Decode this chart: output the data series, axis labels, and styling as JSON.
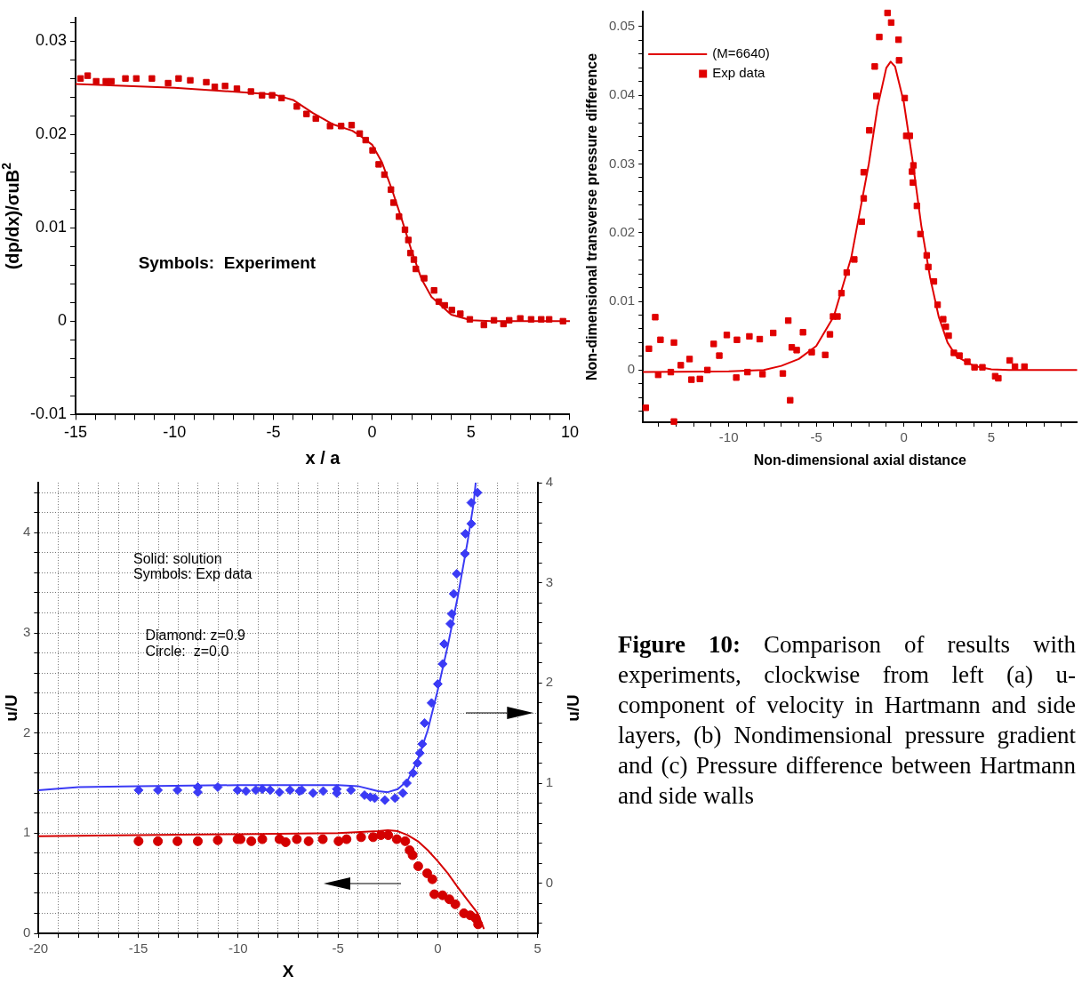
{
  "chart_data": [
    {
      "type": "line",
      "xlabel": "x / a",
      "ylabel": "(dp/dx)/σuB$^{2}$",
      "xlim": [
        -15,
        10
      ],
      "ylim": [
        -0.01,
        0.0325
      ],
      "xticks": [
        -15,
        {
          "value": -14,
          "label": null
        },
        {
          "value": -13,
          "label": null
        },
        {
          "value": -12,
          "label": null
        },
        {
          "value": -11,
          "label": null
        },
        -10,
        {
          "value": -9,
          "label": null
        },
        {
          "value": -8,
          "label": null
        },
        {
          "value": -7,
          "label": null
        },
        {
          "value": -6,
          "label": null
        },
        -5,
        {
          "value": -4,
          "label": null
        },
        {
          "value": -3,
          "label": null
        },
        {
          "value": -2,
          "label": null
        },
        {
          "value": -1,
          "label": null
        },
        0,
        {
          "value": 1,
          "label": null
        },
        {
          "value": 2,
          "label": null
        },
        {
          "value": 3,
          "label": null
        },
        {
          "value": 4,
          "label": null
        },
        5,
        {
          "value": 6,
          "label": null
        },
        {
          "value": 7,
          "label": null
        },
        {
          "value": 8,
          "label": null
        },
        {
          "value": 9,
          "label": null
        },
        10
      ],
      "yticks": [
        -0.01,
        {
          "value": -0.008,
          "label": null
        },
        {
          "value": -0.006,
          "label": null
        },
        {
          "value": -0.004,
          "label": null
        },
        {
          "value": -0.002,
          "label": null
        },
        0,
        {
          "value": 0.002,
          "label": null
        },
        {
          "value": 0.004,
          "label": null
        },
        {
          "value": 0.006,
          "label": null
        },
        {
          "value": 0.008,
          "label": null
        },
        0.01,
        {
          "value": 0.012,
          "label": null
        },
        {
          "value": 0.014,
          "label": null
        },
        {
          "value": 0.016,
          "label": null
        },
        {
          "value": 0.018,
          "label": null
        },
        0.02,
        {
          "value": 0.022,
          "label": null
        },
        {
          "value": 0.024,
          "label": null
        },
        {
          "value": 0.026,
          "label": null
        },
        {
          "value": 0.028,
          "label": null
        },
        0.03,
        {
          "value": 0.032,
          "label": null
        }
      ],
      "grid": false,
      "annotations": [
        "Symbols:  Experiment"
      ],
      "series": [
        {
          "type": "line",
          "color": "#d40000",
          "x": [
            -15,
            -10,
            -5,
            -4,
            -3,
            -2,
            -1,
            -0.5,
            0,
            0.5,
            1,
            1.5,
            2,
            2.5,
            3,
            4,
            5,
            6,
            10
          ],
          "values": [
            0.0254,
            0.025,
            0.0243,
            0.0237,
            0.0223,
            0.0211,
            0.0204,
            0.0197,
            0.0189,
            0.017,
            0.0141,
            0.0109,
            0.0075,
            0.0045,
            0.0026,
            0.0007,
            0.0001,
            0,
            0
          ]
        },
        {
          "type": "scatter",
          "marker": "square",
          "color": "#d40000",
          "x": [
            -14.75,
            -14.39,
            -13.96,
            -13.47,
            -13.19,
            -12.48,
            -11.93,
            -11.14,
            -10.32,
            -9.79,
            -9.2,
            -8.39,
            -7.96,
            -7.44,
            -6.84,
            -6.13,
            -5.57,
            -5.06,
            -4.58,
            -3.81,
            -3.32,
            -2.85,
            -2.13,
            -1.57,
            -1.04,
            -0.63,
            -0.33,
            0.02,
            0.33,
            0.62,
            0.95,
            1.08,
            1.36,
            1.66,
            1.83,
            1.94,
            2.11,
            2.21,
            2.63,
            3.13,
            3.37,
            3.67,
            4.03,
            4.46,
            4.94,
            5.65,
            6.16,
            6.64,
            6.93,
            7.49,
            8.04,
            8.55,
            8.95,
            9.65
          ],
          "values": [
            0.026,
            0.0263,
            0.0257,
            0.0257,
            0.0257,
            0.026,
            0.026,
            0.026,
            0.0255,
            0.026,
            0.0258,
            0.0256,
            0.0251,
            0.0252,
            0.0249,
            0.0246,
            0.0242,
            0.0242,
            0.0239,
            0.023,
            0.0222,
            0.0217,
            0.0209,
            0.0209,
            0.021,
            0.0201,
            0.0194,
            0.0183,
            0.0168,
            0.0157,
            0.0141,
            0.0127,
            0.0112,
            0.0098,
            0.0087,
            0.0073,
            0.0066,
            0.0056,
            0.0046,
            0.0033,
            0.0021,
            0.0017,
            0.0012,
            0.0008,
            0.0002,
            -0.0004,
            0.0001,
            -0.0003,
            0.0001,
            0.0003,
            0.0002,
            0.0002,
            0.0002,
            0
          ]
        }
      ]
    },
    {
      "type": "line",
      "xlabel": "Non-dimensional axial distance",
      "ylabel": "Non-dimensional transverse pressure difference",
      "xlim": [
        -14.9,
        9.9
      ],
      "ylim": [
        -0.0076,
        0.0522
      ],
      "xticks": [
        {
          "value": -14,
          "label": null
        },
        {
          "value": -13,
          "label": null
        },
        {
          "value": -12,
          "label": null
        },
        {
          "value": -11,
          "label": null
        },
        -10,
        {
          "value": -9,
          "label": null
        },
        {
          "value": -8,
          "label": null
        },
        {
          "value": -7,
          "label": null
        },
        {
          "value": -6,
          "label": null
        },
        -5,
        {
          "value": -4,
          "label": null
        },
        {
          "value": -3,
          "label": null
        },
        {
          "value": -2,
          "label": null
        },
        {
          "value": -1,
          "label": null
        },
        0,
        {
          "value": 1,
          "label": null
        },
        {
          "value": 2,
          "label": null
        },
        {
          "value": 3,
          "label": null
        },
        {
          "value": 4,
          "label": null
        },
        5,
        {
          "value": 6,
          "label": null
        },
        {
          "value": 7,
          "label": null
        },
        {
          "value": 8,
          "label": null
        },
        {
          "value": 9,
          "label": null
        }
      ],
      "yticks": [
        {
          "value": -0.006,
          "label": null
        },
        {
          "value": -0.004,
          "label": null
        },
        {
          "value": -0.002,
          "label": null
        },
        0,
        {
          "value": 0.002,
          "label": null
        },
        {
          "value": 0.004,
          "label": null
        },
        {
          "value": 0.006,
          "label": null
        },
        {
          "value": 0.008,
          "label": null
        },
        0.01,
        {
          "value": 0.012,
          "label": null
        },
        {
          "value": 0.014,
          "label": null
        },
        {
          "value": 0.016,
          "label": null
        },
        {
          "value": 0.018,
          "label": null
        },
        0.02,
        {
          "value": 0.022,
          "label": null
        },
        {
          "value": 0.024,
          "label": null
        },
        {
          "value": 0.026,
          "label": null
        },
        {
          "value": 0.028,
          "label": null
        },
        0.03,
        {
          "value": 0.032,
          "label": null
        },
        {
          "value": 0.034,
          "label": null
        },
        {
          "value": 0.036,
          "label": null
        },
        {
          "value": 0.038,
          "label": null
        },
        0.04,
        {
          "value": 0.042,
          "label": null
        },
        {
          "value": 0.044,
          "label": null
        },
        {
          "value": 0.046,
          "label": null
        },
        {
          "value": 0.048,
          "label": null
        },
        0.05
      ],
      "grid": false,
      "legend": "top left",
      "series": [
        {
          "type": "line",
          "name": "(M=6640)",
          "color": "#e00000",
          "x": [
            -14.9,
            -10,
            -8,
            -7,
            -6,
            -5,
            -4,
            -3,
            -2,
            -1.5,
            -1,
            -0.75,
            -0.5,
            0,
            0.5,
            1,
            1.5,
            2,
            2.5,
            3,
            4,
            5,
            6,
            9.9
          ],
          "values": [
            -0.0003,
            -0.0002,
            0,
            0.0006,
            0.0016,
            0.0035,
            0.0078,
            0.0164,
            0.03,
            0.0383,
            0.044,
            0.0449,
            0.0442,
            0.039,
            0.0305,
            0.021,
            0.0135,
            0.0077,
            0.004,
            0.002,
            0.0006,
            0.0001,
            0,
            0
          ]
        },
        {
          "type": "scatter",
          "name": "Exp data",
          "marker": "square",
          "color": "#e00000",
          "x": [
            -14.74,
            -14.56,
            -14.2,
            -14.03,
            -13.9,
            -13.31,
            -13.13,
            -13.13,
            -12.74,
            -12.24,
            -12.13,
            -11.65,
            -11.22,
            -10.86,
            -10.54,
            -10.11,
            -9.57,
            -9.53,
            -8.93,
            -8.82,
            -8.23,
            -8.07,
            -7.46,
            -6.91,
            -6.6,
            -6.49,
            -6.4,
            -6.12,
            -5.76,
            -5.26,
            -4.49,
            -4.22,
            -4.04,
            -3.79,
            -3.56,
            -3.26,
            -2.83,
            -2.4,
            -2.29,
            -2.29,
            -1.97,
            -1.66,
            -1.57,
            -1.4,
            -0.93,
            -0.72,
            -0.3,
            -0.27,
            0.05,
            0.14,
            0.34,
            0.47,
            0.55,
            0.52,
            0.75,
            0.95,
            1.31,
            1.4,
            1.72,
            1.93,
            2.25,
            2.4,
            2.56,
            2.86,
            3.18,
            3.63,
            4.04,
            4.49,
            5.22,
            5.4,
            6.05,
            6.35,
            6.89
          ],
          "values": [
            -0.0055,
            0.0031,
            0.0077,
            -0.0007,
            0.0044,
            -0.0003,
            0.004,
            -0.0075,
            0.0007,
            0.0016,
            -0.0014,
            -0.0013,
            0,
            0.0038,
            0.0021,
            0.0051,
            -0.0011,
            0.0044,
            -0.0003,
            0.0049,
            0.0045,
            -0.0006,
            0.0054,
            -0.0005,
            0.0072,
            -0.0044,
            0.0033,
            0.0029,
            0.0055,
            0.0026,
            0.0022,
            0.0052,
            0.0078,
            0.0078,
            0.0112,
            0.0142,
            0.0161,
            0.0216,
            0.025,
            0.0288,
            0.0349,
            0.0442,
            0.0399,
            0.0485,
            0.052,
            0.0506,
            0.0481,
            0.0451,
            0.0396,
            0.0341,
            0.0341,
            0.0289,
            0.0298,
            0.0273,
            0.0239,
            0.0198,
            0.0167,
            0.015,
            0.0129,
            0.0095,
            0.0074,
            0.0063,
            0.005,
            0.0025,
            0.0021,
            0.0012,
            0.0004,
            0.0004,
            -0.0009,
            -0.0012,
            0.0014,
            0.0005,
            0.0005
          ]
        }
      ]
    },
    {
      "type": "line",
      "xlabel": "X",
      "ylabel": "u/U",
      "y2label": "u/U",
      "xlim": [
        -20,
        5
      ],
      "ylim": [
        0,
        4.5
      ],
      "y2lim": [
        -0.5,
        4
      ],
      "grid": true,
      "xticks": [
        -20,
        {
          "value": -19,
          "label": null
        },
        {
          "value": -18,
          "label": null
        },
        {
          "value": -17,
          "label": null
        },
        {
          "value": -16,
          "label": null
        },
        -15,
        {
          "value": -14,
          "label": null
        },
        {
          "value": -13,
          "label": null
        },
        {
          "value": -12,
          "label": null
        },
        {
          "value": -11,
          "label": null
        },
        -10,
        {
          "value": -9,
          "label": null
        },
        {
          "value": -8,
          "label": null
        },
        {
          "value": -7,
          "label": null
        },
        {
          "value": -6,
          "label": null
        },
        -5,
        {
          "value": -4,
          "label": null
        },
        {
          "value": -3,
          "label": null
        },
        {
          "value": -2,
          "label": null
        },
        {
          "value": -1,
          "label": null
        },
        0,
        {
          "value": 1,
          "label": null
        },
        {
          "value": 2,
          "label": null
        },
        {
          "value": 3,
          "label": null
        },
        {
          "value": 4,
          "label": null
        },
        5
      ],
      "yticks": [
        0,
        {
          "value": 0.2,
          "label": null
        },
        {
          "value": 0.4,
          "label": null
        },
        {
          "value": 0.6,
          "label": null
        },
        {
          "value": 0.8,
          "label": null
        },
        1,
        {
          "value": 1.2,
          "label": null
        },
        {
          "value": 1.4,
          "label": null
        },
        {
          "value": 1.6,
          "label": null
        },
        {
          "value": 1.8,
          "label": null
        },
        2,
        {
          "value": 2.2,
          "label": null
        },
        {
          "value": 2.4,
          "label": null
        },
        {
          "value": 2.6,
          "label": null
        },
        {
          "value": 2.8,
          "label": null
        },
        3,
        {
          "value": 3.2,
          "label": null
        },
        {
          "value": 3.4,
          "label": null
        },
        {
          "value": 3.6,
          "label": null
        },
        {
          "value": 3.8,
          "label": null
        },
        4,
        {
          "value": 4.2,
          "label": null
        },
        {
          "value": 4.4,
          "label": null
        }
      ],
      "y2ticks": [
        {
          "value": -0.4,
          "label": null
        },
        {
          "value": -0.2,
          "label": null
        },
        0,
        {
          "value": 0.2,
          "label": null
        },
        {
          "value": 0.4,
          "label": null
        },
        {
          "value": 0.6,
          "label": null
        },
        {
          "value": 0.8,
          "label": null
        },
        1,
        {
          "value": 1.2,
          "label": null
        },
        {
          "value": 1.4,
          "label": null
        },
        {
          "value": 1.6,
          "label": null
        },
        {
          "value": 1.8,
          "label": null
        },
        2,
        {
          "value": 2.2,
          "label": null
        },
        {
          "value": 2.4,
          "label": null
        },
        {
          "value": 2.6,
          "label": null
        },
        {
          "value": 2.8,
          "label": null
        },
        3,
        {
          "value": 3.2,
          "label": null
        },
        {
          "value": 3.4,
          "label": null
        },
        {
          "value": 3.6,
          "label": null
        },
        {
          "value": 3.8,
          "label": null
        },
        4
      ],
      "annotations": [
        "Solid: solution",
        "Symbols: Exp data",
        "Diamond: z=0.9",
        "Circle:  z=0.0"
      ],
      "series": [
        {
          "type": "line",
          "axis": "y2",
          "color": "#3a3af5",
          "x": [
            -20,
            -18,
            -15,
            -10,
            -5,
            -4,
            -3,
            -2.5,
            -2,
            -1.5,
            -1,
            -0.5,
            0,
            0.5,
            1,
            1.5,
            1.8,
            1.9
          ],
          "values": [
            0.93,
            0.96,
            0.97,
            0.98,
            0.98,
            0.97,
            0.92,
            0.91,
            0.94,
            1.03,
            1.23,
            1.53,
            1.93,
            2.37,
            2.86,
            3.42,
            3.8,
            4
          ]
        },
        {
          "type": "scatter",
          "axis": "y2",
          "marker": "diamond",
          "color": "#3a3af5",
          "x": [
            -14.99,
            -14.02,
            -13.04,
            -12.02,
            -12.02,
            -11.02,
            -10.03,
            -9.61,
            -9.12,
            -8.79,
            -8.4,
            -7.93,
            -7.4,
            -6.93,
            -6.81,
            -6.25,
            -5.74,
            -5.06,
            -5.06,
            -4.35,
            -3.67,
            -3.38,
            -3.16,
            -2.65,
            -2.14,
            -1.75,
            -1.55,
            -1.24,
            -1.02,
            -0.9,
            -0.78,
            -0.66,
            -0.31,
            0,
            0.24,
            0.32,
            0.63,
            0.7,
            0.8,
            0.95,
            1.36,
            1.38,
            1.68,
            1.68,
            1.99
          ],
          "values": [
            0.93,
            0.93,
            0.93,
            0.96,
            0.91,
            0.96,
            0.93,
            0.92,
            0.93,
            0.94,
            0.93,
            0.91,
            0.93,
            0.92,
            0.93,
            0.9,
            0.92,
            0.9,
            0.94,
            0.93,
            0.88,
            0.86,
            0.85,
            0.83,
            0.85,
            0.9,
            1,
            1.1,
            1.2,
            1.3,
            1.39,
            1.6,
            1.8,
            1.99,
            2.19,
            2.39,
            2.59,
            2.69,
            2.89,
            3.09,
            3.29,
            3.49,
            3.59,
            3.8,
            3.9
          ]
        },
        {
          "type": "line",
          "color": "#d40000",
          "x": [
            -20,
            -15,
            -10,
            -5,
            -3,
            -2.5,
            -2,
            -1.5,
            -1,
            -0.5,
            0,
            0.5,
            1,
            1.5,
            2,
            2.3
          ],
          "values": [
            0.97,
            0.98,
            0.99,
            1,
            1.02,
            1.03,
            1.02,
            0.98,
            0.92,
            0.83,
            0.72,
            0.6,
            0.46,
            0.33,
            0.2,
            0.05
          ]
        },
        {
          "type": "scatter",
          "marker": "circle",
          "color": "#d40000",
          "x": [
            -14.99,
            -14.02,
            -13.04,
            -12.02,
            -11.02,
            -10.03,
            -9.88,
            -9.34,
            -8.79,
            -7.93,
            -7.62,
            -7.06,
            -6.47,
            -5.76,
            -4.97,
            -4.57,
            -3.84,
            -3.24,
            -2.85,
            -2.48,
            -2.05,
            -1.63,
            -1.41,
            -1.26,
            -0.98,
            -0.53,
            -0.27,
            -0.17,
            0.24,
            0.58,
            0.88,
            1.31,
            1.63,
            1.9,
            2.02
          ],
          "values": [
            0.92,
            0.92,
            0.92,
            0.92,
            0.93,
            0.94,
            0.94,
            0.92,
            0.94,
            0.94,
            0.91,
            0.94,
            0.92,
            0.94,
            0.92,
            0.94,
            0.96,
            0.96,
            0.98,
            0.98,
            0.94,
            0.92,
            0.83,
            0.78,
            0.67,
            0.6,
            0.54,
            0.39,
            0.38,
            0.34,
            0.29,
            0.2,
            0.18,
            0.15,
            0.09
          ]
        }
      ]
    },
    {
      "type": "other",
      "annotations": [
        "Figure 10:",
        "Comparison of results with experiments, clockwise from left (a) u-component of velocity in Hartmann and side layers, (b) Nondimensional pressure gradient and (c) Pressure difference between Hartmann and side walls"
      ]
    }
  ]
}
